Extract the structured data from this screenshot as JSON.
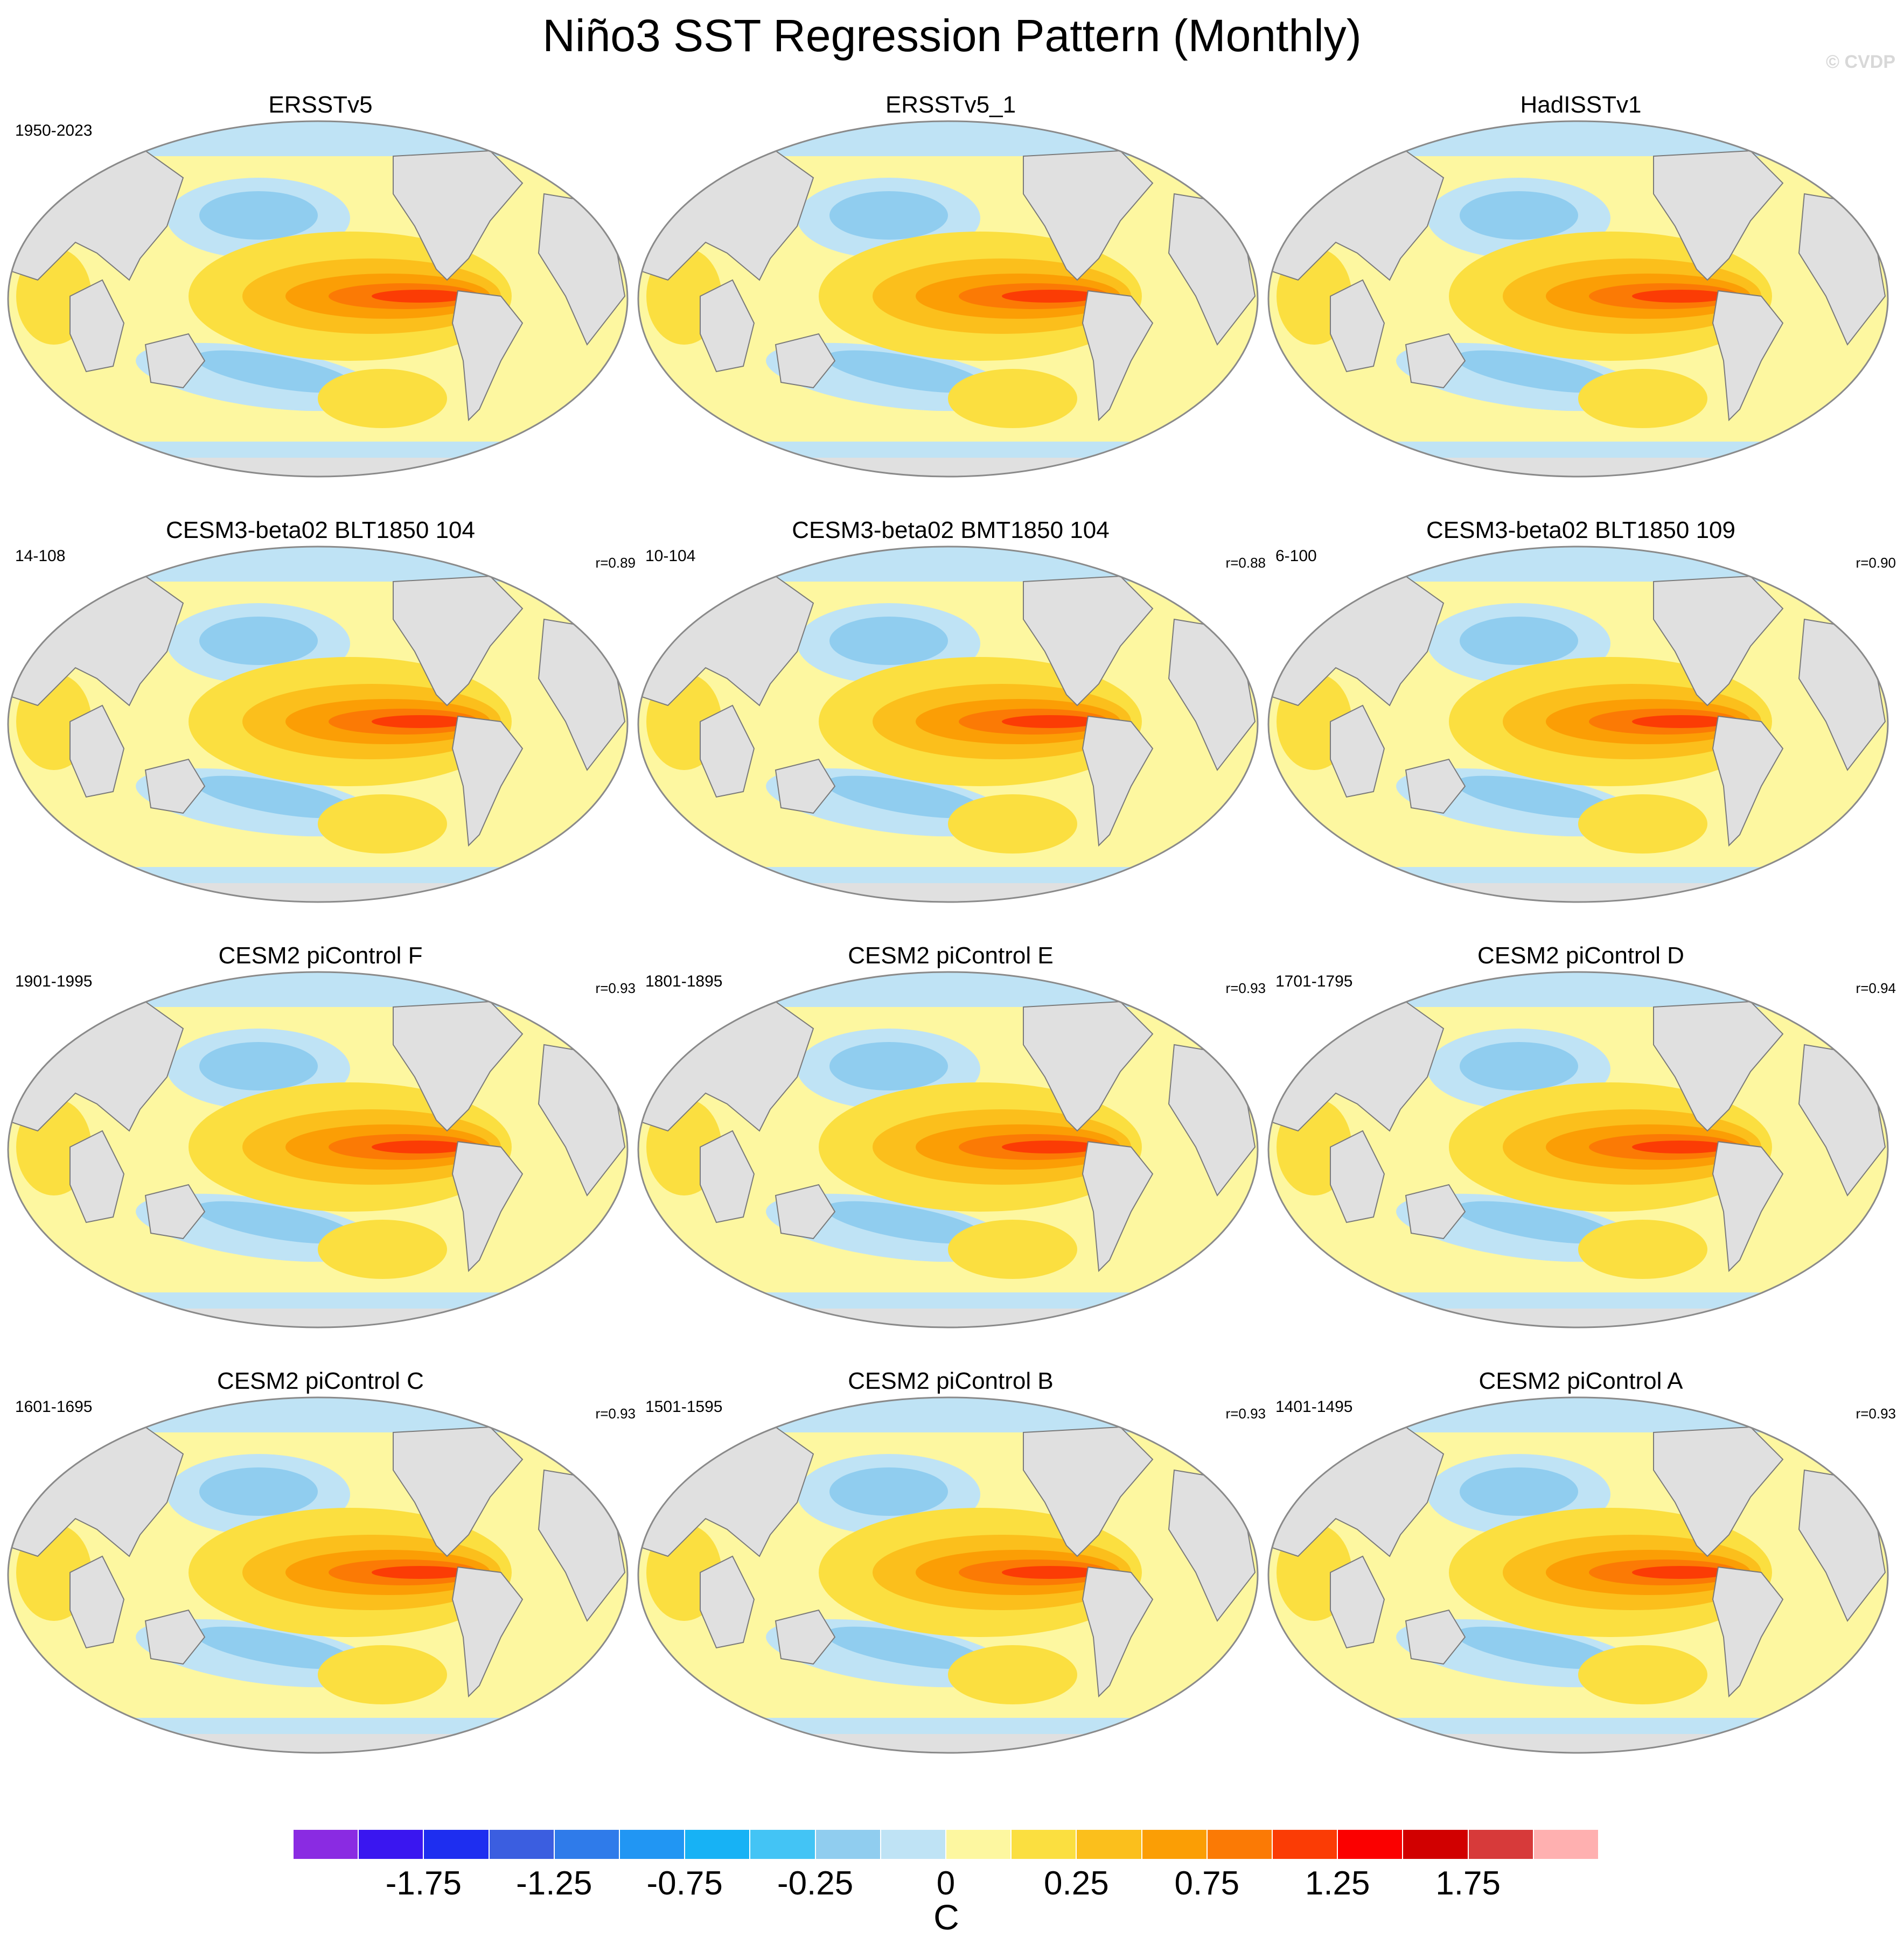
{
  "title": "Niño3 SST Regression Pattern (Monthly)",
  "copyright": "© CVDP",
  "panels": [
    {
      "title": "ERSSTv5",
      "period": "1950-2023",
      "corr": "",
      "icons": [
        "sst-map-icon"
      ]
    },
    {
      "title": "ERSSTv5_1",
      "period": "",
      "corr": ""
    },
    {
      "title": "HadISSTv1",
      "period": "",
      "corr": ""
    },
    {
      "title": "CESM3-beta02 BLT1850 104",
      "period": "14-108",
      "corr": "r=0.89"
    },
    {
      "title": "CESM3-beta02 BMT1850 104",
      "period": "10-104",
      "corr": "r=0.88"
    },
    {
      "title": "CESM3-beta02 BLT1850 109",
      "period": "6-100",
      "corr": "r=0.90"
    },
    {
      "title": "CESM2 piControl F",
      "period": "1901-1995",
      "corr": "r=0.93"
    },
    {
      "title": "CESM2 piControl E",
      "period": "1801-1895",
      "corr": "r=0.93"
    },
    {
      "title": "CESM2 piControl D",
      "period": "1701-1795",
      "corr": "r=0.94"
    },
    {
      "title": "CESM2 piControl C",
      "period": "1601-1695",
      "corr": "r=0.93"
    },
    {
      "title": "CESM2 piControl B",
      "period": "1501-1595",
      "corr": "r=0.93"
    },
    {
      "title": "CESM2 piControl A",
      "period": "1401-1495",
      "corr": "r=0.93"
    }
  ],
  "colorbar": {
    "units": "C",
    "colors": [
      "#8a2be2",
      "#3a16f0",
      "#1e2ef0",
      "#3b5ee0",
      "#2f7bea",
      "#2196f3",
      "#17b2f5",
      "#43c4f5",
      "#90cdef",
      "#bfe3f5",
      "#fdf7a0",
      "#fbdf40",
      "#fbbf1c",
      "#fb9e05",
      "#fb7a05",
      "#fb3c05",
      "#fb0000",
      "#d10000",
      "#d73a3a",
      "#ffb0b0"
    ],
    "tick_labels": [
      "-1.75",
      "-1.25",
      "-0.75",
      "-0.25",
      "0",
      "0.25",
      "0.75",
      "1.25",
      "1.75"
    ]
  }
}
